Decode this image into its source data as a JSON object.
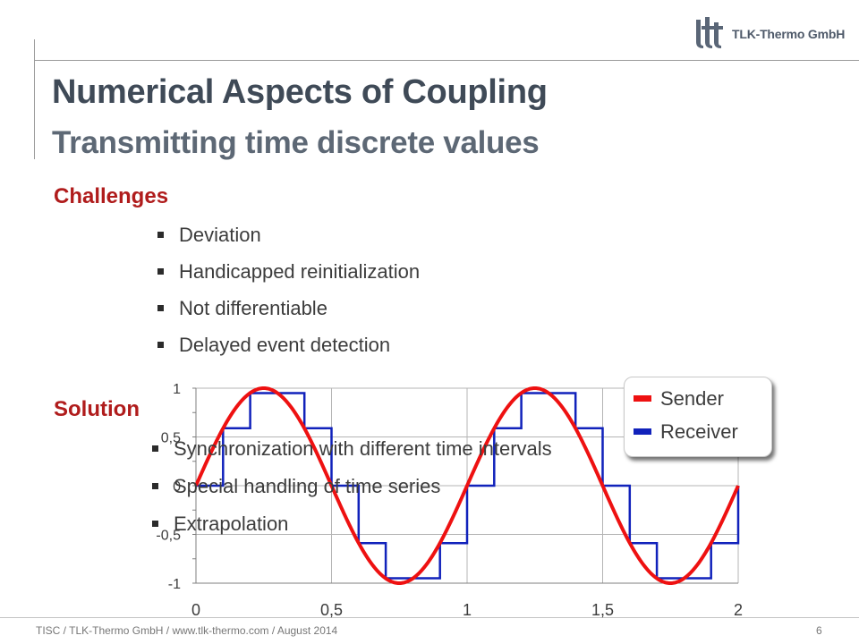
{
  "header": {
    "logo_text": "TLK-Thermo GmbH",
    "title": "Numerical Aspects of Coupling",
    "subtitle": "Transmitting time discrete values"
  },
  "challenges": {
    "heading": "Challenges",
    "items": [
      "Deviation",
      "Handicapped reinitialization",
      "Not differentiable",
      "Delayed event detection"
    ]
  },
  "solution": {
    "heading": "Solution",
    "items": [
      "Synchronization with different time intervals",
      "Special handling of time series",
      "Extrapolation"
    ]
  },
  "chart_data": {
    "type": "line",
    "x_ticks": [
      "0",
      "0,5",
      "1",
      "1,5",
      "2"
    ],
    "y_ticks": [
      "1",
      "0,5",
      "0",
      "-0,5",
      "-1"
    ],
    "xlim": [
      0,
      2
    ],
    "ylim": [
      -1,
      1
    ],
    "grid": true,
    "legend_position": "top-right",
    "series": [
      {
        "name": "Sender",
        "color": "#ee1111",
        "function": "sin(2*pi*x)",
        "x_range": [
          0,
          2
        ]
      },
      {
        "name": "Receiver",
        "color": "#1122bb",
        "style": "step",
        "x": [
          0.0,
          0.1,
          0.2,
          0.4,
          0.5,
          0.6,
          0.7,
          0.9,
          1.0,
          1.1,
          1.2,
          1.4,
          1.5,
          1.6,
          1.7,
          1.9,
          2.0
        ],
        "y": [
          0,
          0.59,
          0.95,
          0.59,
          0,
          -0.59,
          -0.95,
          -0.59,
          0,
          0.59,
          0.95,
          0.59,
          0,
          -0.59,
          -0.95,
          -0.59,
          0
        ]
      }
    ]
  },
  "footer": {
    "text": "TISC / TLK-Thermo  GmbH / www.tlk-thermo.com / August 2014",
    "page": "6"
  },
  "colors": {
    "title": "#3f4a57",
    "subtitle": "#5d6875",
    "section": "#b01c1c",
    "sender": "#ee1111",
    "receiver": "#1122bb"
  }
}
